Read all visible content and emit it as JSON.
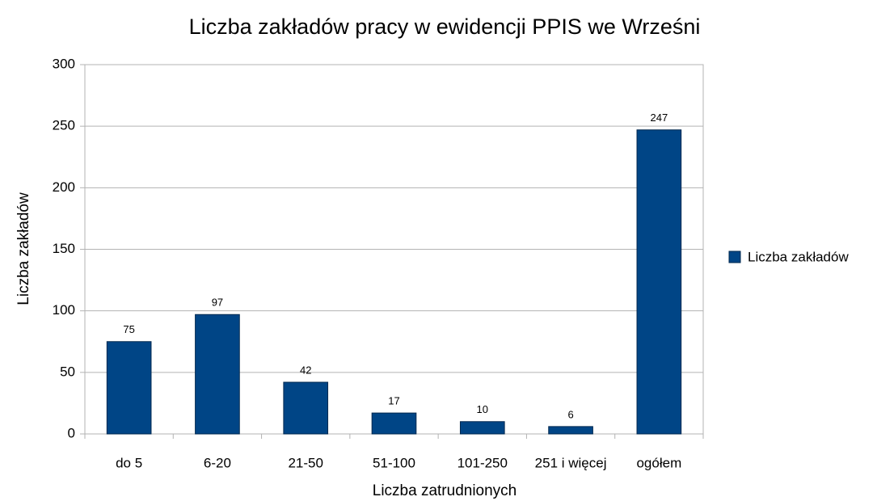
{
  "chart_data": {
    "type": "bar",
    "title": "Liczba zakładów pracy w ewidencji PPIS we Wrześni",
    "x_label": "Liczba zatrudnionych",
    "y_label": "Liczba zakładów",
    "categories": [
      "do 5",
      "6-20",
      "21-50",
      "51-100",
      "101-250",
      "251 i więcej",
      "ogółem"
    ],
    "series": [
      {
        "name": "Liczba zakładów",
        "color": "#004586",
        "values": [
          75,
          97,
          42,
          17,
          10,
          6,
          247
        ]
      }
    ],
    "ylim": [
      0,
      300
    ],
    "yticks": [
      0,
      50,
      100,
      150,
      200,
      250,
      300
    ],
    "grid": true,
    "legend": "right"
  }
}
